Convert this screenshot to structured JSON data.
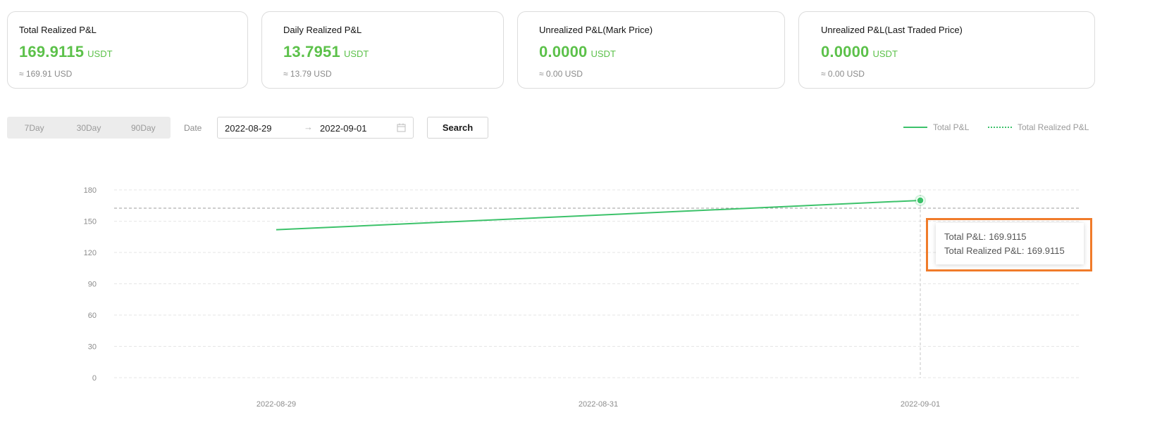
{
  "cards": [
    {
      "title": "Total Realized P&L",
      "value": "169.9115",
      "unit": "USDT",
      "approx": "≈ 169.91 USD"
    },
    {
      "title": "Daily Realized P&L",
      "value": "13.7951",
      "unit": "USDT",
      "approx": "≈ 13.79 USD"
    },
    {
      "title": "Unrealized P&L(Mark Price)",
      "value": "0.0000",
      "unit": "USDT",
      "approx": "≈ 0.00 USD"
    },
    {
      "title": "Unrealized P&L(Last Traded Price)",
      "value": "0.0000",
      "unit": "USDT",
      "approx": "≈ 0.00 USD"
    }
  ],
  "filters": {
    "ranges": [
      "7Day",
      "30Day",
      "90Day"
    ],
    "date_label": "Date",
    "start_date": "2022-08-29",
    "arrow": "→",
    "end_date": "2022-09-01",
    "search_label": "Search"
  },
  "legend": [
    {
      "label": "Total P&L",
      "style": "solid"
    },
    {
      "label": "Total Realized P&L",
      "style": "dotted"
    }
  ],
  "tooltip": {
    "total_pnl_label": "Total P&L:",
    "total_pnl_value": "169.9115",
    "total_realized_label": "Total Realized P&L:",
    "total_realized_value": "169.9115"
  },
  "colors": {
    "accent_green": "#5cc14a",
    "line_green": "#3cc26a",
    "highlight": "#f07b2a"
  },
  "chart_data": {
    "type": "line",
    "x": [
      "2022-08-29",
      "2022-08-31",
      "2022-09-01"
    ],
    "series": [
      {
        "name": "Total P&L",
        "points": [
          [
            "2022-08-29",
            141.8
          ],
          [
            "2022-09-01",
            169.9115
          ]
        ]
      }
    ],
    "ylim": [
      0,
      180
    ],
    "yticks": [
      0,
      30,
      60,
      90,
      120,
      150,
      180
    ],
    "xticks": [
      "2022-08-29",
      "2022-08-31",
      "2022-09-01"
    ],
    "grid": true,
    "hover_x": "2022-09-01",
    "hover_y": 169.9115,
    "legend_position": "top-right"
  }
}
